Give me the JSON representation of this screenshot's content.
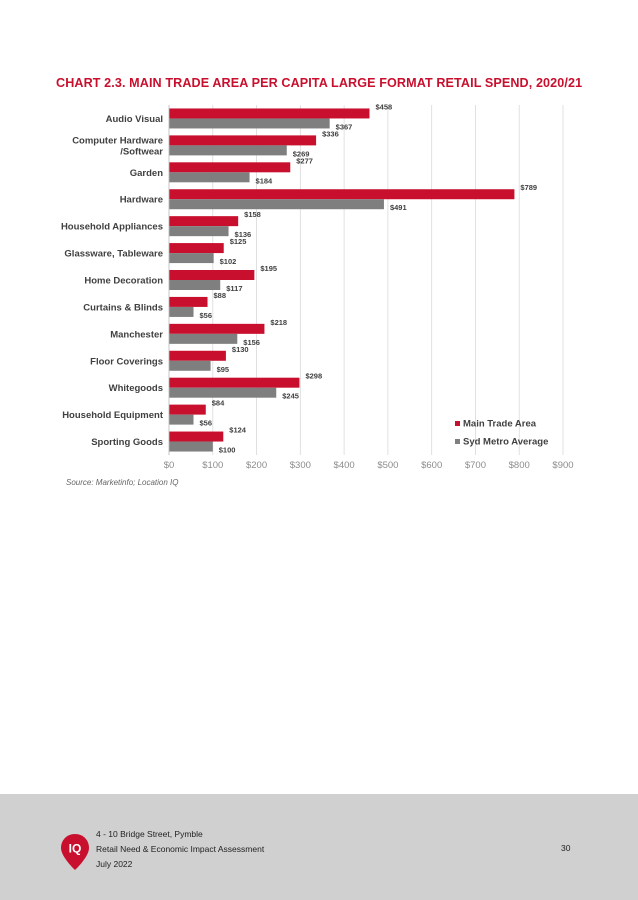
{
  "page": {
    "title": "CHART 2.3. MAIN TRADE AREA PER CAPITA LARGE FORMAT RETAIL SPEND, 2020/21",
    "source": "Source: Marketinfo; Location IQ",
    "page_number": "30"
  },
  "footer": {
    "address": "4 - 10 Bridge Street, Pymble",
    "report": "Retail Need & Economic Impact Assessment",
    "date": "July 2022",
    "logo_text": "IQ"
  },
  "colors": {
    "accent": "#c8102e",
    "series_main": "#c8102e",
    "series_syd": "#7f7f7f",
    "grid": "#d9d9d9",
    "footer_bg": "#d0d0d0"
  },
  "chart_data": {
    "type": "bar",
    "orientation": "horizontal",
    "title": "CHART 2.3. MAIN TRADE AREA PER CAPITA LARGE FORMAT RETAIL SPEND, 2020/21",
    "categories": [
      "Audio Visual",
      "Computer Hardware\n/Softwear",
      "Garden",
      "Hardware",
      "Household Appliances",
      "Glassware, Tableware",
      "Home Decoration",
      "Curtains & Blinds",
      "Manchester",
      "Floor Coverings",
      "Whitegoods",
      "Household Equipment",
      "Sporting Goods"
    ],
    "series": [
      {
        "name": "Main Trade Area",
        "color": "#c8102e",
        "values": [
          458,
          336,
          277,
          789,
          158,
          125,
          195,
          88,
          218,
          130,
          298,
          84,
          124
        ],
        "labels": [
          "$458",
          "$336",
          "$277",
          "$789",
          "$158",
          "$125",
          "$195",
          "$88",
          "$218",
          "$130",
          "$298",
          "$84",
          "$124"
        ]
      },
      {
        "name": "Syd Metro Average",
        "color": "#7f7f7f",
        "values": [
          367,
          269,
          184,
          491,
          136,
          102,
          117,
          56,
          156,
          95,
          245,
          56,
          100
        ],
        "labels": [
          "$367",
          "$269",
          "$184",
          "$491",
          "$136",
          "$102",
          "$117",
          "$56",
          "$156",
          "$95",
          "$245",
          "$56",
          "$100"
        ]
      }
    ],
    "xlim": [
      0,
      900
    ],
    "x_ticks": [
      0,
      100,
      200,
      300,
      400,
      500,
      600,
      700,
      800,
      900
    ],
    "x_tick_labels": [
      "$0",
      "$100",
      "$200",
      "$300",
      "$400",
      "$500",
      "$600",
      "$700",
      "$800",
      "$900"
    ],
    "grid": true,
    "legend": "bottom-right"
  }
}
